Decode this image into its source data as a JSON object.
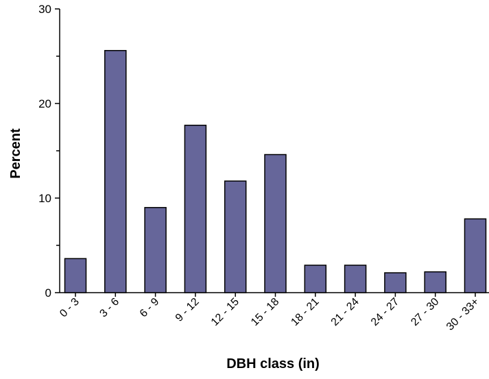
{
  "chart_data": {
    "type": "bar",
    "title": "",
    "xlabel": "DBH class (in)",
    "ylabel": "Percent",
    "categories": [
      "0 - 3",
      "3 - 6",
      "6 - 9",
      "9 - 12",
      "12 - 15",
      "15 - 18",
      "18 - 21",
      "21 - 24",
      "24 - 27",
      "27 - 30",
      "30 - 33+"
    ],
    "values": [
      3.6,
      25.6,
      9.0,
      17.7,
      11.8,
      14.6,
      2.9,
      2.9,
      2.1,
      2.2,
      7.8
    ],
    "ylim": [
      0,
      30
    ],
    "yticks": [
      0,
      10,
      20,
      30
    ],
    "yticks_minor": [
      5,
      15,
      25
    ],
    "grid": false,
    "legend": "none",
    "bar_color": "#66669a",
    "bar_edge_color": "#000000"
  }
}
